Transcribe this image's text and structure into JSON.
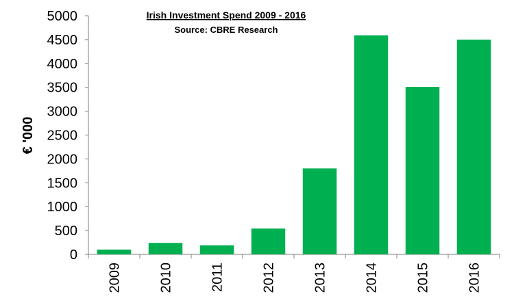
{
  "chart_data": {
    "type": "bar",
    "title": "Irish Investment Spend 2009 - 2016",
    "subtitle": "Source: CBRE Research",
    "xlabel": "",
    "ylabel": "€ '000",
    "categories": [
      "2009",
      "2010",
      "2011",
      "2012",
      "2013",
      "2014",
      "2015",
      "2016"
    ],
    "values": [
      100,
      240,
      190,
      540,
      1800,
      4590,
      3510,
      4500
    ],
    "ylim": [
      0,
      5000
    ],
    "yticks": [
      0,
      500,
      1000,
      1500,
      2000,
      2500,
      3000,
      3500,
      4000,
      4500,
      5000
    ],
    "grid": false,
    "legend": "none",
    "colors": {
      "bar": "#00b050",
      "axis": "#7f7f7f"
    }
  }
}
